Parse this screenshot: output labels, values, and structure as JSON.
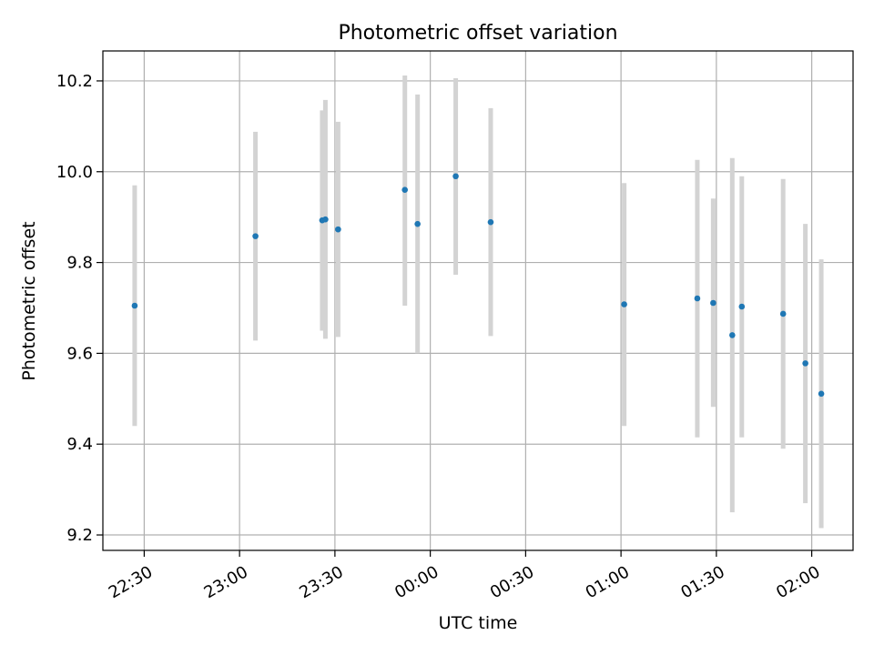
{
  "chart_data": {
    "type": "scatter",
    "title": "Photometric offset variation",
    "xlabel": "UTC time",
    "ylabel": "Photometric offset",
    "grid": true,
    "x_domain": [
      "22:17",
      "02:13"
    ],
    "ylim": [
      9.166,
      10.266
    ],
    "x_ticks": [
      {
        "label": "22:30",
        "time": "22:30"
      },
      {
        "label": "23:00",
        "time": "23:00"
      },
      {
        "label": "23:30",
        "time": "23:30"
      },
      {
        "label": "00:00",
        "time": "00:00"
      },
      {
        "label": "00:30",
        "time": "00:30"
      },
      {
        "label": "01:00",
        "time": "01:00"
      },
      {
        "label": "01:30",
        "time": "01:30"
      },
      {
        "label": "02:00",
        "time": "02:00"
      }
    ],
    "y_ticks": [
      {
        "label": "9.2",
        "value": 9.2
      },
      {
        "label": "9.4",
        "value": 9.4
      },
      {
        "label": "9.6",
        "value": 9.6
      },
      {
        "label": "9.8",
        "value": 9.8
      },
      {
        "label": "10.0",
        "value": 10.0
      },
      {
        "label": "10.2",
        "value": 10.2
      }
    ],
    "points": [
      {
        "time": "22:27",
        "y": 9.705,
        "low": 9.44,
        "high": 9.97
      },
      {
        "time": "23:05",
        "y": 9.858,
        "low": 9.628,
        "high": 10.088
      },
      {
        "time": "23:26",
        "y": 9.893,
        "low": 9.65,
        "high": 10.135
      },
      {
        "time": "23:27",
        "y": 9.895,
        "low": 9.632,
        "high": 10.158
      },
      {
        "time": "23:31",
        "y": 9.873,
        "low": 9.636,
        "high": 10.11
      },
      {
        "time": "23:52",
        "y": 9.96,
        "low": 9.705,
        "high": 10.212
      },
      {
        "time": "23:56",
        "y": 9.885,
        "low": 9.6,
        "high": 10.17
      },
      {
        "time": "00:08",
        "y": 9.99,
        "low": 9.773,
        "high": 10.206
      },
      {
        "time": "00:19",
        "y": 9.889,
        "low": 9.638,
        "high": 10.14
      },
      {
        "time": "01:01",
        "y": 9.708,
        "low": 9.44,
        "high": 9.975
      },
      {
        "time": "01:24",
        "y": 9.721,
        "low": 9.415,
        "high": 10.026
      },
      {
        "time": "01:29",
        "y": 9.711,
        "low": 9.482,
        "high": 9.941
      },
      {
        "time": "01:35",
        "y": 9.64,
        "low": 9.25,
        "high": 10.03
      },
      {
        "time": "01:38",
        "y": 9.703,
        "low": 9.415,
        "high": 9.99
      },
      {
        "time": "01:51",
        "y": 9.687,
        "low": 9.39,
        "high": 9.984
      },
      {
        "time": "01:58",
        "y": 9.578,
        "low": 9.27,
        "high": 9.885
      },
      {
        "time": "02:03",
        "y": 9.511,
        "low": 9.215,
        "high": 9.807
      }
    ],
    "colors": {
      "marker": "#1f77b4",
      "errorbar": "#d3d3d3",
      "grid": "#b0b0b0",
      "axes": "#000000"
    }
  }
}
